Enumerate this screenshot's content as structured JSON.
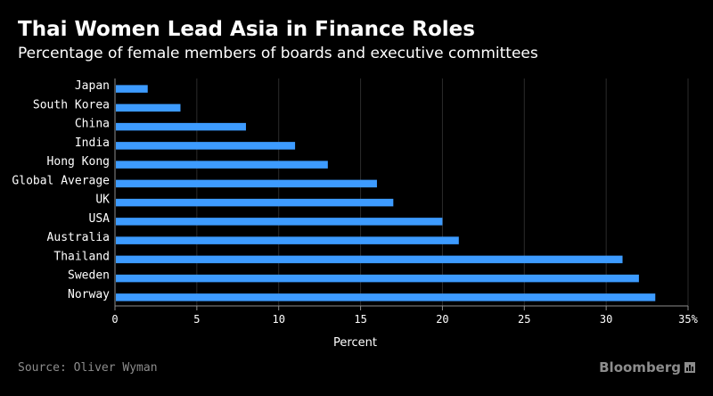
{
  "header": {
    "title": "Thai Women Lead Asia in Finance Roles",
    "subtitle": "Percentage of female members of boards and executive committees"
  },
  "footer": {
    "source": "Source: Oliver Wyman",
    "brand": "Bloomberg",
    "brand_icon": "bar-chart-icon"
  },
  "colors": {
    "bar": "#3d9bff",
    "grid": "#2b2b2b",
    "axis": "#8c8c8c"
  },
  "chart_data": {
    "type": "bar",
    "orientation": "horizontal",
    "categories": [
      "Japan",
      "South Korea",
      "China",
      "India",
      "Hong Kong",
      "Global Average",
      "UK",
      "USA",
      "Australia",
      "Thailand",
      "Sweden",
      "Norway"
    ],
    "values": [
      2,
      4,
      8,
      11,
      13,
      16,
      17,
      20,
      21,
      31,
      32,
      33
    ],
    "title": "Thai Women Lead Asia in Finance Roles",
    "subtitle": "Percentage of female members of boards and executive committees",
    "xlabel": "Percent",
    "ylabel": "",
    "xlim": [
      0,
      35
    ],
    "xticks": [
      0,
      5,
      10,
      15,
      20,
      25,
      30,
      35
    ],
    "xtick_labels": [
      "0",
      "5",
      "10",
      "15",
      "20",
      "25",
      "30",
      "35%"
    ],
    "grid": true
  }
}
